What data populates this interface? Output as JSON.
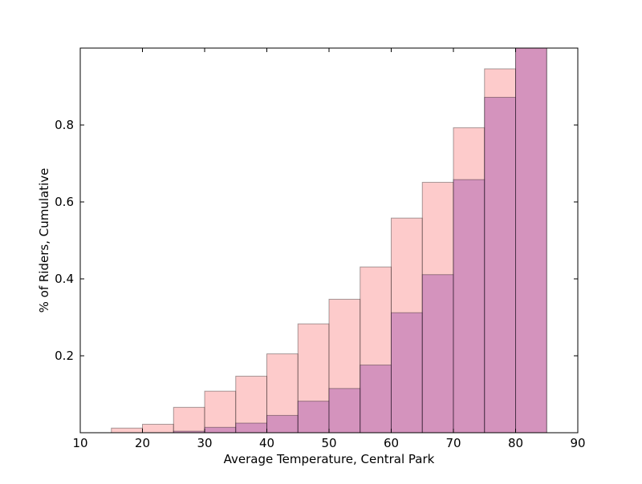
{
  "chart_data": {
    "type": "bar",
    "title": "",
    "xlabel": "Average Temperature, Central Park",
    "ylabel": "% of Riders, Cumulative",
    "xlim": [
      10,
      90
    ],
    "ylim": [
      0,
      1.0
    ],
    "xticks": [
      10,
      20,
      30,
      40,
      50,
      60,
      70,
      80,
      90
    ],
    "yticks": [
      0.2,
      0.4,
      0.6,
      0.8
    ],
    "grid": false,
    "bin_edges": [
      15,
      20,
      25,
      30,
      35,
      40,
      45,
      50,
      55,
      60,
      65,
      70,
      75,
      80,
      85
    ],
    "series": [
      {
        "color": "#fa8c8c",
        "opacity": 0.45,
        "values": [
          0.012,
          0.022,
          0.066,
          0.108,
          0.147,
          0.205,
          0.283,
          0.347,
          0.431,
          0.558,
          0.651,
          0.793,
          0.946,
          1.0
        ]
      },
      {
        "color": "#b366b3",
        "opacity": 0.55,
        "values": [
          0.0,
          0.0,
          0.004,
          0.014,
          0.025,
          0.045,
          0.082,
          0.115,
          0.176,
          0.312,
          0.411,
          0.658,
          0.872,
          1.0
        ]
      }
    ]
  }
}
